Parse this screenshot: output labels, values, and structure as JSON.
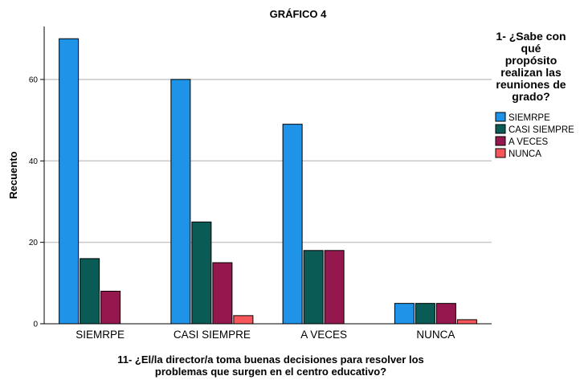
{
  "chart_data": {
    "type": "bar",
    "title": "GRÁFICO 4",
    "xlabel_lines": [
      "11- ¿El/la director/a toma buenas decisiones para resolver los",
      "problemas  que surgen en el centro educativo?"
    ],
    "ylabel": "Recuento",
    "categories": [
      "SIEMRPE",
      "CASI SIEMPRE",
      "A  VECES",
      "NUNCA"
    ],
    "ylim": [
      0,
      73
    ],
    "yticks": [
      0,
      20,
      40,
      60
    ],
    "grid": true,
    "legend_position": "right",
    "legend_title_lines": [
      "1- ¿Sabe con",
      "qué",
      "propósito",
      "realizan las",
      "reuniones de",
      "grado?"
    ],
    "series": [
      {
        "name": "SIEMRPE",
        "color": "#1f93e8",
        "values": [
          70,
          60,
          49,
          5
        ]
      },
      {
        "name": "CASI SIEMPRE",
        "color": "#0a5a56",
        "values": [
          16,
          25,
          18,
          5
        ]
      },
      {
        "name": "A  VECES",
        "color": "#94174d",
        "values": [
          8,
          15,
          18,
          5
        ]
      },
      {
        "name": "NUNCA",
        "color": "#f7575a",
        "values": [
          0,
          2,
          0,
          1
        ]
      }
    ]
  }
}
